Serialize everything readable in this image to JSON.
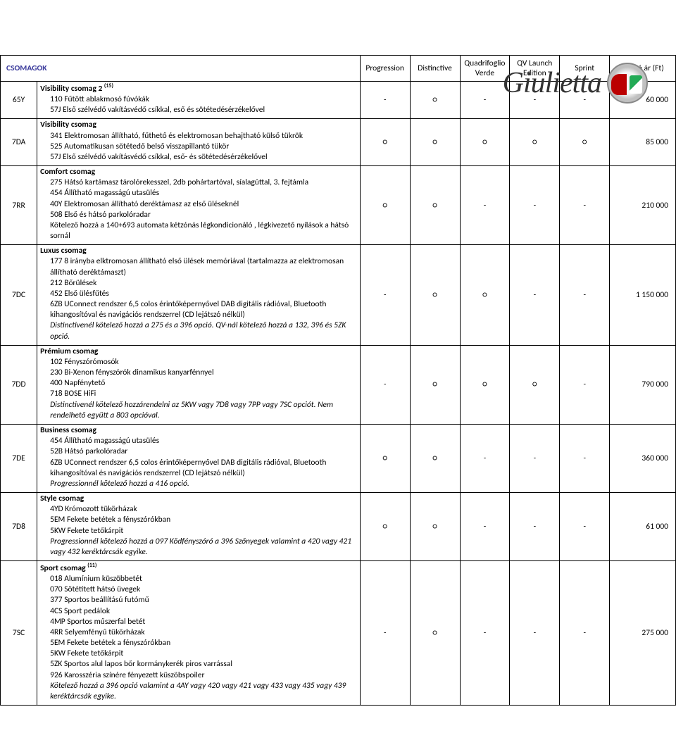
{
  "logo": {
    "model": "Giulietta"
  },
  "section_title": "CSOMAGOK",
  "columns": [
    "Progression",
    "Distinctive",
    "Quadrifoglio Verde",
    "QV Launch Edition",
    "Sprint",
    "Bruttó ár (Ft)"
  ],
  "rows": [
    {
      "code": "65Y",
      "title": "Visibility csomag 2",
      "title_sup": "(15)",
      "lines": [
        {
          "t": "110 Fűtött ablakmosó fúvókák"
        },
        {
          "t": "57J Első szélvédő vakításvédő csíkkal, eső és sötétedésérzékelővel"
        }
      ],
      "vals": [
        "-",
        "○",
        "-",
        "-",
        "-"
      ],
      "price": "60 000"
    },
    {
      "code": "7DA",
      "title": "Visibility csomag",
      "lines": [
        {
          "t": "341 Elektromosan állítható, fűthető és elektromosan behajtható külső tükrök"
        },
        {
          "t": "525 Automatikusan sötétedő belső visszapillantó tükör"
        },
        {
          "t": "57J Első szélvédő vakításvédő csíkkal, eső- és sötétedésérzékelővel"
        }
      ],
      "vals": [
        "○",
        "○",
        "○",
        "○",
        "○"
      ],
      "price": "85 000"
    },
    {
      "code": "7RR",
      "title": "Comfort csomag",
      "lines": [
        {
          "t": "275 Hátsó kartámasz tárolórekesszel, 2db pohártartóval, síalagúttal, 3. fejtámla"
        },
        {
          "t": "454 Állítható magasságú utasülés"
        },
        {
          "t": "40Y Elektromosan állítható deréktámasz az első üléseknél"
        },
        {
          "t": "508 Első és hátsó parkolóradar"
        },
        {
          "t": "Kötelező hozzá a 140+693  automata kétzónás légkondicionáló , légkivezető nyílások a hátsó sornál"
        }
      ],
      "vals": [
        "○",
        "○",
        "-",
        "-",
        "-"
      ],
      "price": "210 000"
    },
    {
      "code": "7DC",
      "title": "Luxus csomag",
      "lines": [
        {
          "t": "177 8 irányba elktromosan állítható első ülések memóriával (tartalmazza az elektromosan állítható deréktámaszt)"
        },
        {
          "t": "212 Bőrülések"
        },
        {
          "t": "452 Első ülésfűtés"
        },
        {
          "t": "6ZB UConnect rendszer 6,5 colos érintőképernyővel DAB digitális rádióval, Bluetooth kihangosítóval és navigációs rendszerrel (CD lejátszó nélkül)"
        },
        {
          "t": "Distinctivenél kötelező hozzá a 275 és a 396 opció. QV-nál kötelező hozzá a 132, 396 és 5ZK opció.",
          "italic": true
        }
      ],
      "vals": [
        "-",
        "○",
        "○",
        "-",
        "-"
      ],
      "price": "1 150 000"
    },
    {
      "code": "7DD",
      "title": "Prémium csomag",
      "lines": [
        {
          "t": "102 Fényszórómosók"
        },
        {
          "t": "230 Bi-Xenon fényszórók dinamikus kanyarfénnyel"
        },
        {
          "t": "400 Napfénytető"
        },
        {
          "t": "718 BOSE HiFi"
        },
        {
          "t": "Distinctivenél kötelező hozzárendelni az 5KW vagy 7D8 vagy 7PP vagy 7SC opciót. Nem rendelhető együtt a 803 opcióval.",
          "italic": true
        }
      ],
      "vals": [
        "-",
        "○",
        "○",
        "○",
        "-"
      ],
      "price": "790 000"
    },
    {
      "code": "7DE",
      "title": "Business csomag",
      "lines": [
        {
          "t": "454 Állítható magasságú utasülés"
        },
        {
          "t": "52B Hátsó parkolóradar"
        },
        {
          "t": "6ZB UConnect rendszer 6,5 colos érintőképernyővel DAB digitális rádióval, Bluetooth kihangosítóval és navigációs rendszerrel (CD lejátszó nélkül)"
        },
        {
          "t": "Progressionnél kötelező hozzá a 416 opció.",
          "italic": true
        }
      ],
      "vals": [
        "○",
        "○",
        "-",
        "-",
        "-"
      ],
      "price": "360 000"
    },
    {
      "code": "7D8",
      "title": "Style csomag",
      "lines": [
        {
          "t": "4YD Krómozott tükörházak"
        },
        {
          "t": "5EM Fekete betétek a fényszórókban"
        },
        {
          "t": "5KW Fekete tetőkárpit"
        },
        {
          "t": "Progressionnél  kötelező hozzá a 097 Ködfényszóró a 396 Szőnyegek valamint a 420 vagy 421 vagy 432 keréktárcsák egyike.",
          "italic": true
        }
      ],
      "vals": [
        "○",
        "○",
        "-",
        "-",
        "-"
      ],
      "price": "61 000"
    },
    {
      "code": "7SC",
      "title": "Sport csomag",
      "title_sup": "(11)",
      "lines": [
        {
          "t": "018 Alumínium küszöbbetét"
        },
        {
          "t": "070 Sötétített hátsó üvegek"
        },
        {
          "t": "377 Sportos beállítású futómű"
        },
        {
          "t": "4CS Sport pedálok"
        },
        {
          "t": "4MP Sportos műszerfal betét"
        },
        {
          "t": "4RR Selyemfényű tükörházak"
        },
        {
          "t": "5EM Fekete betétek a fényszórókban"
        },
        {
          "t": "5KW Fekete tetőkárpit"
        },
        {
          "t": "5ZK Sportos alul lapos bőr kormánykerék piros varrással"
        },
        {
          "t": "926 Karosszéria színére fényezett küszöbspoiler"
        },
        {
          "t": "Kötelező hozzá a 396 opció valamint a 4AY vagy 420 vagy 421 vagy  433 vagy 435 vagy 439 keréktárcsák egyike.",
          "italic": true
        }
      ],
      "vals": [
        "-",
        "○",
        "-",
        "-",
        "-"
      ],
      "price": "275 000"
    }
  ]
}
